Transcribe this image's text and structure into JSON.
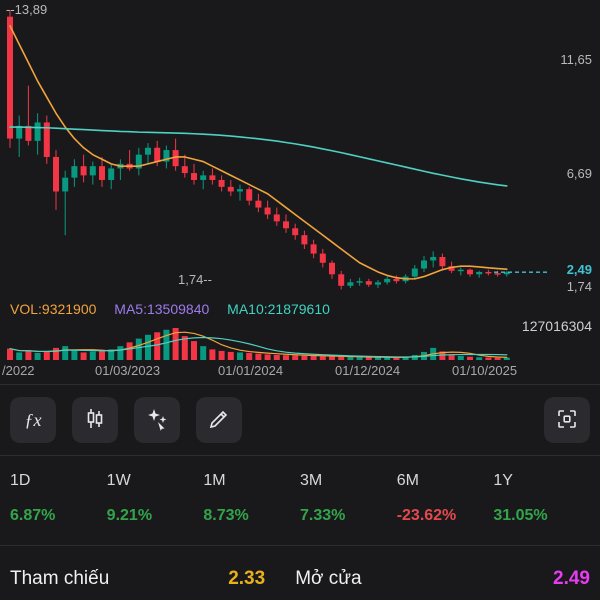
{
  "colors": {
    "up": "#089981",
    "down": "#f23645",
    "ma_fast": "#f2a33c",
    "ma_slow": "#4fd0c0",
    "last_price_line": "#40c4d4",
    "vol_text": "#f2a33c",
    "ma5_text": "#9d7bea",
    "ma10_text": "#3fd3c2",
    "positive": "#32a54a",
    "negative": "#e5494d",
    "reference": "#e8b11c",
    "open": "#e73cf0"
  },
  "chart": {
    "high_label": "--13,89",
    "low_label": "1,74--",
    "y_axis": {
      "t1": "11,65",
      "t2": "6,69",
      "current": "2,49",
      "low": "1,74"
    },
    "x_axis_labels": [
      "/2022",
      "01/03/2023",
      "01/01/2024",
      "01/12/2024",
      "01/10/2025"
    ],
    "volume_header": {
      "vol": "VOL:9321900",
      "ma5": "MA5:13509840",
      "ma10": "MA10:21879610"
    },
    "volume_axis_max": "127016304"
  },
  "chart_data": {
    "type": "candlestick",
    "title": "",
    "last_price": 2.49,
    "high": 13.89,
    "low": 1.74,
    "y_ticks": [
      11.65,
      6.69,
      2.49,
      1.74
    ],
    "volume_max_value": 127016304,
    "candles": [
      {
        "o": 13.6,
        "h": 13.89,
        "l": 7.9,
        "c": 8.3,
        "v": 45000000
      },
      {
        "o": 8.3,
        "h": 9.3,
        "l": 7.5,
        "c": 8.85,
        "v": 30000000
      },
      {
        "o": 8.85,
        "h": 10.6,
        "l": 8.0,
        "c": 8.2,
        "v": 35000000
      },
      {
        "o": 8.2,
        "h": 9.4,
        "l": 7.6,
        "c": 9.0,
        "v": 28000000
      },
      {
        "o": 9.0,
        "h": 9.3,
        "l": 7.2,
        "c": 7.5,
        "v": 32000000
      },
      {
        "o": 7.5,
        "h": 7.8,
        "l": 5.2,
        "c": 6.0,
        "v": 48000000
      },
      {
        "o": 6.0,
        "h": 6.9,
        "l": 4.1,
        "c": 6.6,
        "v": 55000000
      },
      {
        "o": 6.6,
        "h": 7.4,
        "l": 6.2,
        "c": 7.1,
        "v": 38000000
      },
      {
        "o": 7.1,
        "h": 7.6,
        "l": 6.4,
        "c": 6.7,
        "v": 30000000
      },
      {
        "o": 6.7,
        "h": 7.3,
        "l": 6.3,
        "c": 7.1,
        "v": 34000000
      },
      {
        "o": 7.1,
        "h": 7.5,
        "l": 6.2,
        "c": 6.5,
        "v": 36000000
      },
      {
        "o": 6.5,
        "h": 7.2,
        "l": 6.1,
        "c": 7.0,
        "v": 42000000
      },
      {
        "o": 7.0,
        "h": 7.4,
        "l": 6.5,
        "c": 7.2,
        "v": 55000000
      },
      {
        "o": 7.2,
        "h": 7.8,
        "l": 6.9,
        "c": 7.0,
        "v": 70000000
      },
      {
        "o": 7.0,
        "h": 7.9,
        "l": 6.7,
        "c": 7.6,
        "v": 85000000
      },
      {
        "o": 7.6,
        "h": 8.1,
        "l": 7.2,
        "c": 7.9,
        "v": 100000000
      },
      {
        "o": 7.9,
        "h": 8.2,
        "l": 7.1,
        "c": 7.3,
        "v": 110000000
      },
      {
        "o": 7.3,
        "h": 8.0,
        "l": 7.0,
        "c": 7.8,
        "v": 120000000
      },
      {
        "o": 7.8,
        "h": 8.3,
        "l": 6.9,
        "c": 7.1,
        "v": 127016304
      },
      {
        "o": 7.1,
        "h": 7.6,
        "l": 6.6,
        "c": 6.8,
        "v": 95000000
      },
      {
        "o": 6.8,
        "h": 7.2,
        "l": 6.3,
        "c": 6.5,
        "v": 75000000
      },
      {
        "o": 6.5,
        "h": 6.9,
        "l": 6.1,
        "c": 6.7,
        "v": 55000000
      },
      {
        "o": 6.7,
        "h": 7.0,
        "l": 6.3,
        "c": 6.5,
        "v": 42000000
      },
      {
        "o": 6.5,
        "h": 6.7,
        "l": 6.0,
        "c": 6.2,
        "v": 36000000
      },
      {
        "o": 6.2,
        "h": 6.5,
        "l": 5.8,
        "c": 6.0,
        "v": 32000000
      },
      {
        "o": 6.0,
        "h": 6.3,
        "l": 5.6,
        "c": 6.1,
        "v": 30000000
      },
      {
        "o": 6.1,
        "h": 6.2,
        "l": 5.4,
        "c": 5.6,
        "v": 28000000
      },
      {
        "o": 5.6,
        "h": 5.9,
        "l": 5.1,
        "c": 5.3,
        "v": 25000000
      },
      {
        "o": 5.3,
        "h": 5.6,
        "l": 4.8,
        "c": 5.0,
        "v": 22000000
      },
      {
        "o": 5.0,
        "h": 5.3,
        "l": 4.5,
        "c": 4.7,
        "v": 20000000
      },
      {
        "o": 4.7,
        "h": 5.0,
        "l": 4.2,
        "c": 4.4,
        "v": 19000000
      },
      {
        "o": 4.4,
        "h": 4.6,
        "l": 3.9,
        "c": 4.1,
        "v": 18000000
      },
      {
        "o": 4.1,
        "h": 4.3,
        "l": 3.5,
        "c": 3.7,
        "v": 17000000
      },
      {
        "o": 3.7,
        "h": 3.9,
        "l": 3.1,
        "c": 3.3,
        "v": 16000000
      },
      {
        "o": 3.3,
        "h": 3.5,
        "l": 2.7,
        "c": 2.9,
        "v": 15000000
      },
      {
        "o": 2.9,
        "h": 3.0,
        "l": 2.2,
        "c": 2.4,
        "v": 14000000
      },
      {
        "o": 2.4,
        "h": 2.55,
        "l": 1.74,
        "c": 1.9,
        "v": 13000000
      },
      {
        "o": 1.9,
        "h": 2.2,
        "l": 1.8,
        "c": 2.05,
        "v": 12000000
      },
      {
        "o": 2.05,
        "h": 2.25,
        "l": 1.9,
        "c": 2.1,
        "v": 11000000
      },
      {
        "o": 2.1,
        "h": 2.2,
        "l": 1.85,
        "c": 1.95,
        "v": 10000000
      },
      {
        "o": 1.95,
        "h": 2.15,
        "l": 1.8,
        "c": 2.05,
        "v": 10000000
      },
      {
        "o": 2.05,
        "h": 2.3,
        "l": 1.95,
        "c": 2.2,
        "v": 11000000
      },
      {
        "o": 2.2,
        "h": 2.35,
        "l": 2.0,
        "c": 2.1,
        "v": 10000000
      },
      {
        "o": 2.1,
        "h": 2.4,
        "l": 2.0,
        "c": 2.3,
        "v": 13000000
      },
      {
        "o": 2.3,
        "h": 2.8,
        "l": 2.2,
        "c": 2.65,
        "v": 20000000
      },
      {
        "o": 2.65,
        "h": 3.2,
        "l": 2.5,
        "c": 3.0,
        "v": 32000000
      },
      {
        "o": 3.0,
        "h": 3.4,
        "l": 2.7,
        "c": 3.15,
        "v": 48000000
      },
      {
        "o": 3.15,
        "h": 3.3,
        "l": 2.6,
        "c": 2.75,
        "v": 34000000
      },
      {
        "o": 2.75,
        "h": 2.95,
        "l": 2.45,
        "c": 2.55,
        "v": 22000000
      },
      {
        "o": 2.55,
        "h": 2.7,
        "l": 2.35,
        "c": 2.6,
        "v": 16000000
      },
      {
        "o": 2.6,
        "h": 2.65,
        "l": 2.3,
        "c": 2.4,
        "v": 13000000
      },
      {
        "o": 2.4,
        "h": 2.55,
        "l": 2.25,
        "c": 2.5,
        "v": 11000000
      },
      {
        "o": 2.5,
        "h": 2.6,
        "l": 2.35,
        "c": 2.45,
        "v": 10000000
      },
      {
        "o": 2.45,
        "h": 2.55,
        "l": 2.3,
        "c": 2.4,
        "v": 9000000
      },
      {
        "o": 2.4,
        "h": 2.55,
        "l": 2.3,
        "c": 2.49,
        "v": 9321900
      }
    ],
    "ma_fast": [
      13.2,
      12.4,
      11.6,
      10.8,
      10.1,
      9.4,
      8.8,
      8.3,
      7.9,
      7.6,
      7.4,
      7.2,
      7.1,
      7.1,
      7.1,
      7.2,
      7.3,
      7.4,
      7.5,
      7.5,
      7.4,
      7.3,
      7.1,
      6.9,
      6.7,
      6.5,
      6.3,
      6.1,
      5.9,
      5.6,
      5.3,
      5.0,
      4.7,
      4.4,
      4.1,
      3.8,
      3.5,
      3.2,
      2.9,
      2.7,
      2.5,
      2.35,
      2.25,
      2.2,
      2.2,
      2.3,
      2.45,
      2.6,
      2.7,
      2.75,
      2.75,
      2.72,
      2.68,
      2.65,
      2.62
    ],
    "ma_slow": [
      8.8,
      8.8,
      8.79,
      8.78,
      8.77,
      8.75,
      8.73,
      8.71,
      8.69,
      8.67,
      8.65,
      8.63,
      8.61,
      8.6,
      8.58,
      8.57,
      8.56,
      8.55,
      8.54,
      8.53,
      8.51,
      8.49,
      8.47,
      8.44,
      8.41,
      8.37,
      8.33,
      8.29,
      8.24,
      8.19,
      8.13,
      8.07,
      8.0,
      7.93,
      7.85,
      7.77,
      7.69,
      7.6,
      7.51,
      7.42,
      7.33,
      7.24,
      7.15,
      7.06,
      6.97,
      6.88,
      6.79,
      6.71,
      6.63,
      6.55,
      6.48,
      6.41,
      6.35,
      6.29,
      6.24
    ]
  },
  "toolbar": {
    "fx_glyph": "ƒx",
    "buttons": [
      "function",
      "candlestick-style",
      "magic-draw",
      "draw",
      "fullscreen"
    ]
  },
  "periods": [
    {
      "label": "1D",
      "value": "6.87%",
      "direction": "up"
    },
    {
      "label": "1W",
      "value": "9.21%",
      "direction": "up"
    },
    {
      "label": "1M",
      "value": "8.73%",
      "direction": "up"
    },
    {
      "label": "3M",
      "value": "7.33%",
      "direction": "up"
    },
    {
      "label": "6M",
      "value": "-23.62%",
      "direction": "down"
    },
    {
      "label": "1Y",
      "value": "31.05%",
      "direction": "up"
    }
  ],
  "summary": {
    "reference_label": "Tham chiếu",
    "reference_value": "2.33",
    "open_label": "Mở cửa",
    "open_value": "2.49"
  }
}
